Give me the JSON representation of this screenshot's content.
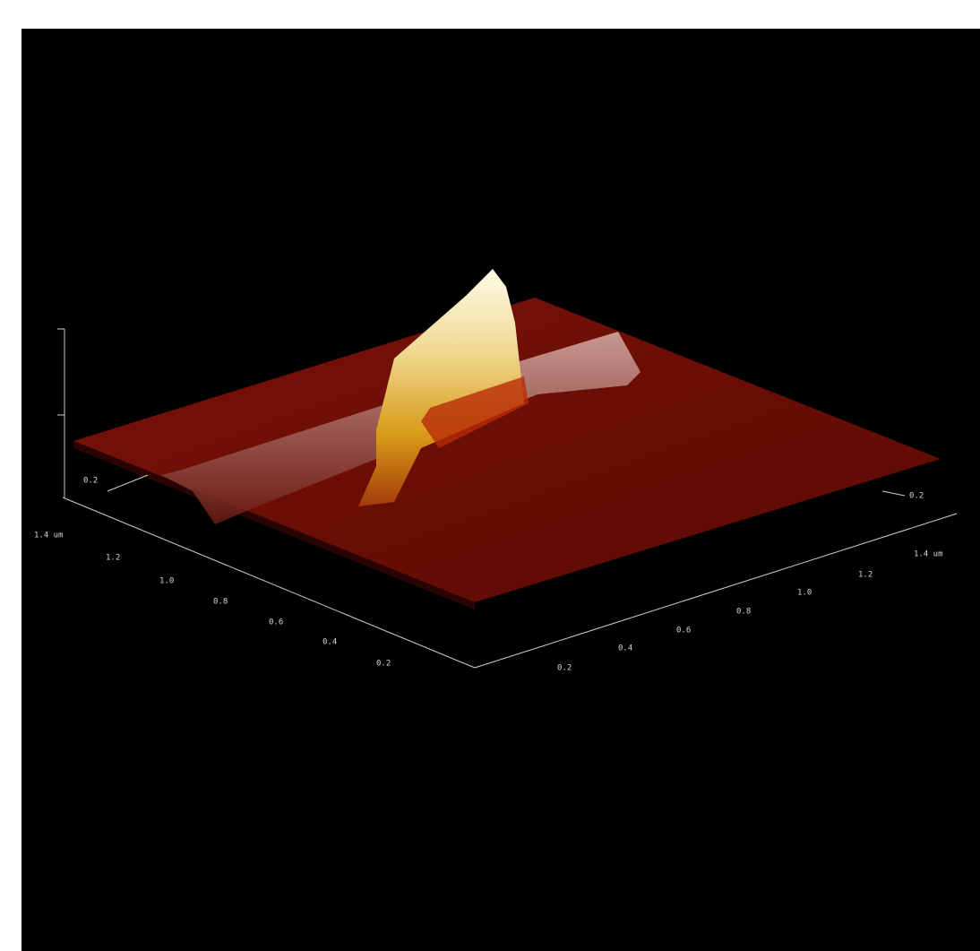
{
  "axes": {
    "left_axis": {
      "labels": [
        "1.4 um",
        "1.2",
        "1.0",
        "0.8",
        "0.6",
        "0.4",
        "0.2"
      ]
    },
    "right_axis": {
      "labels": [
        "0.2",
        "0.4",
        "0.6",
        "0.8",
        "1.0",
        "1.2",
        "1.4 um"
      ]
    },
    "side_labels": [
      "0.2",
      "0.2"
    ]
  }
}
